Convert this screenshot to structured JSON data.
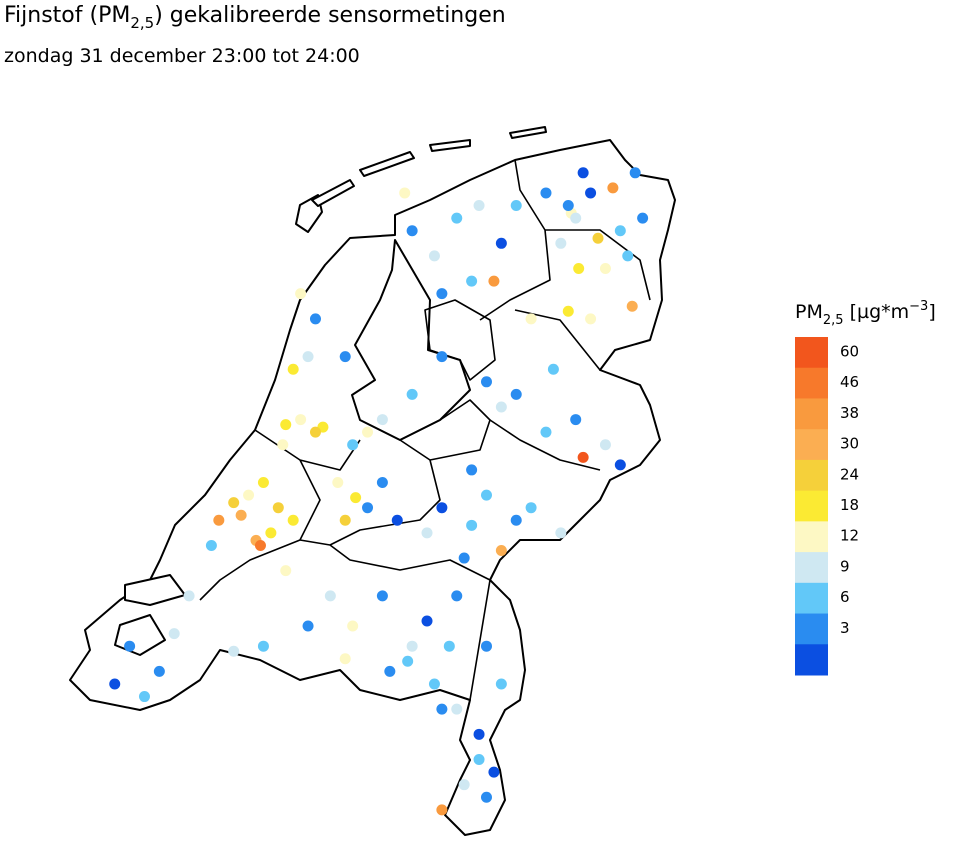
{
  "chart_data": {
    "type": "map",
    "title": {
      "before": "Fijnstof (PM",
      "sub": "2,5",
      "after": ") gekalibreerde sensormetingen"
    },
    "subtitle": "zondag 31 december 23:00 tot 24:00",
    "legend": {
      "title": {
        "before": "PM",
        "sub": "2,5",
        "mid": " [µg*m",
        "sup": "−3",
        "after": "]"
      },
      "ticks": [
        60,
        46,
        38,
        30,
        24,
        18,
        12,
        9,
        6,
        3
      ],
      "colors": [
        "#f2561d",
        "#f7792b",
        "#f99a3e",
        "#fbae52",
        "#f5d03a",
        "#fbea33",
        "#fdf8c4",
        "#cfe8f2",
        "#62c8f8",
        "#2a8cf0",
        "#0b4fe1"
      ]
    },
    "points": {
      "lon": [
        6.57,
        6.6,
        6.55,
        6.7,
        6.85,
        6.9,
        7.05,
        6.95,
        6.8,
        6.62,
        6.5,
        6.4,
        6.75,
        6.98,
        6.7,
        6.55,
        7.0,
        6.65,
        5.8,
        5.65,
        5.5,
        5.95,
        6.1,
        5.9,
        5.7,
        6.05,
        5.45,
        6.2,
        6.3,
        6.45,
        6.2,
        6.1,
        6.6,
        6.8,
        6.9,
        6.65,
        6.4,
        6.0,
        5.9,
        6.0,
        6.2,
        6.5,
        5.7,
        5.9,
        5.85,
        6.1,
        5.6,
        6.3,
        5.5,
        5.3,
        5.7,
        5.2,
        5.12,
        5.2,
        5.3,
        5.05,
        5.4,
        5.0,
        4.9,
        4.85,
        4.75,
        4.65,
        4.7,
        4.8,
        4.75,
        4.85,
        5.05,
        4.63,
        5.1,
        4.3,
        4.35,
        4.45,
        4.48,
        4.55,
        4.5,
        4.4,
        4.2,
        4.65,
        4.6,
        4.15,
        4.7,
        3.6,
        3.8,
        3.9,
        3.7,
        4.0,
        3.5,
        5.47,
        5.5,
        5.3,
        5.1,
        4.8,
        4.5,
        5.6,
        5.75,
        5.05,
        5.35,
        5.8,
        4.95,
        5.65,
        4.3,
        5.7,
        5.95,
        6.1,
        6.0,
        5.85,
        5.7,
        6.0,
        5.95,
        6.05,
        5.8
      ],
      "lat": [
        53.22,
        53.2,
        53.25,
        53.3,
        53.32,
        53.15,
        53.2,
        53.05,
        53.0,
        53.0,
        53.1,
        53.3,
        53.12,
        52.85,
        52.8,
        52.83,
        53.38,
        53.38,
        53.2,
        53.05,
        53.15,
        53.25,
        53.1,
        52.95,
        52.9,
        52.95,
        53.3,
        53.25,
        52.8,
        52.6,
        52.5,
        52.45,
        52.4,
        52.3,
        52.22,
        52.25,
        52.35,
        52.55,
        52.2,
        52.1,
        52.0,
        51.95,
        52.05,
        51.98,
        51.85,
        51.88,
        51.95,
        52.05,
        52.5,
        52.4,
        52.65,
        52.35,
        52.09,
        52.05,
        52.15,
        52.0,
        52.0,
        52.15,
        52.37,
        52.35,
        52.4,
        52.38,
        52.6,
        52.65,
        52.9,
        52.8,
        52.65,
        52.3,
        52.3,
        52.07,
        52.02,
        51.92,
        51.9,
        51.95,
        52.15,
        52.1,
        52.0,
        51.8,
        52.05,
        51.9,
        52.0,
        51.5,
        51.4,
        51.55,
        51.3,
        51.7,
        51.35,
        51.44,
        51.5,
        51.7,
        51.58,
        51.58,
        51.5,
        51.6,
        51.5,
        51.45,
        51.4,
        51.7,
        51.7,
        51.35,
        51.48,
        51.25,
        51.15,
        51.35,
        51.5,
        50.95,
        50.85,
        50.9,
        51.05,
        51.0,
        51.25
      ],
      "values": [
        14,
        10,
        5,
        2,
        40,
        8,
        3,
        7,
        14,
        19,
        11,
        4,
        26,
        33,
        12,
        20,
        5,
        2,
        6,
        9,
        3,
        11,
        2,
        7,
        4,
        45,
        12,
        8,
        15,
        6,
        3,
        9,
        5,
        10,
        2,
        60,
        7,
        4,
        3,
        8,
        5,
        10,
        2,
        6,
        4,
        30,
        11,
        7,
        6,
        9,
        3,
        14,
        20,
        5,
        3,
        24,
        2,
        16,
        18,
        26,
        14,
        20,
        22,
        9,
        12,
        5,
        3,
        16,
        8,
        28,
        35,
        32,
        50,
        22,
        19,
        12,
        40,
        14,
        26,
        8,
        18,
        5,
        3,
        11,
        7,
        9,
        2,
        6,
        10,
        3,
        12,
        4,
        8,
        2,
        7,
        14,
        5,
        3,
        9,
        6,
        11,
        4,
        2,
        6,
        3,
        9,
        40,
        5,
        7,
        2,
        11
      ]
    }
  }
}
